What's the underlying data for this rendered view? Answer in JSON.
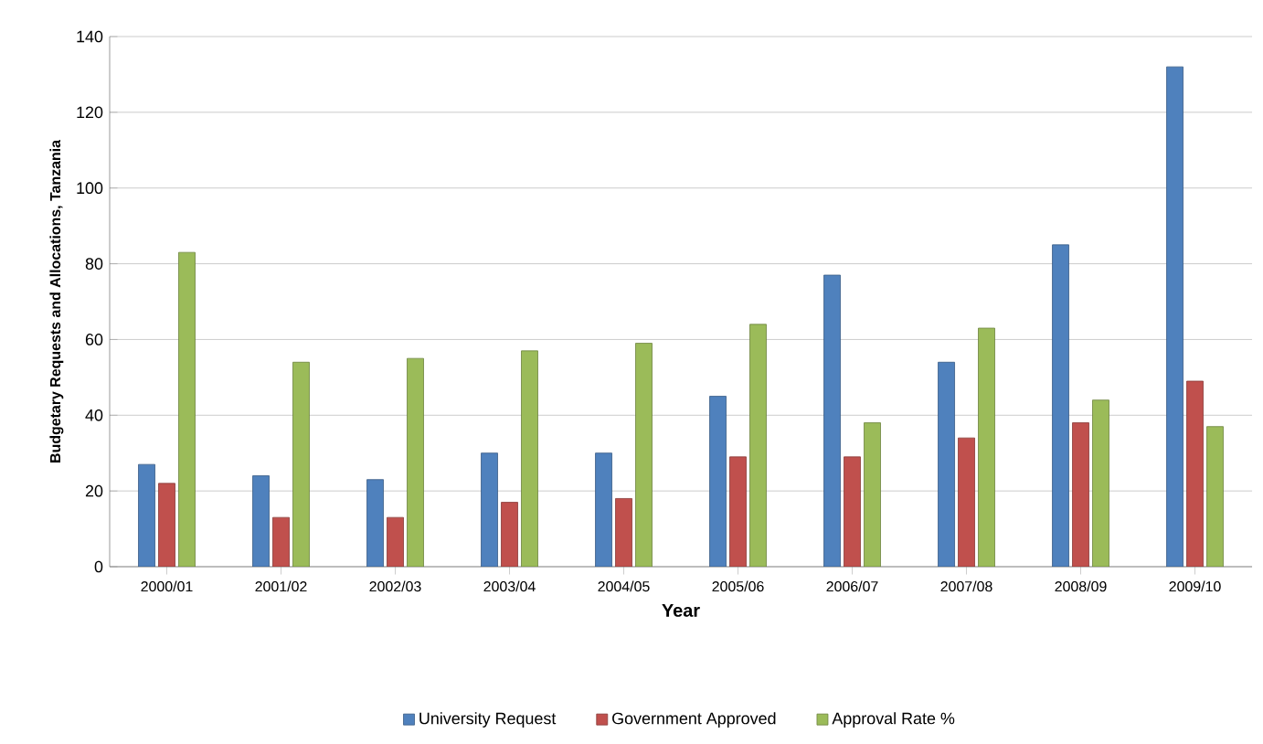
{
  "chart_data": {
    "type": "bar",
    "xlabel": "Year",
    "ylabel": "Budgetary Requests and Allocations, Tanzania",
    "categories": [
      "2000/01",
      "2001/02",
      "2002/03",
      "2003/04",
      "2004/05",
      "2005/06",
      "2006/07",
      "2007/08",
      "2008/09",
      "2009/10"
    ],
    "series": [
      {
        "name": "University Request",
        "color": "#4f81bd",
        "values": [
          27,
          24,
          23,
          30,
          30,
          45,
          77,
          54,
          85,
          132
        ]
      },
      {
        "name": "Government Approved",
        "color": "#c0504d",
        "values": [
          22,
          13,
          13,
          17,
          18,
          29,
          29,
          34,
          38,
          49
        ]
      },
      {
        "name": "Approval Rate %",
        "color": "#9bbb59",
        "values": [
          83,
          54,
          55,
          57,
          59,
          64,
          38,
          63,
          44,
          37
        ]
      }
    ],
    "ylim": [
      0,
      140
    ],
    "yticks": [
      0,
      20,
      40,
      60,
      80,
      100,
      120,
      140
    ],
    "grid": "y",
    "legend": "bottom"
  }
}
